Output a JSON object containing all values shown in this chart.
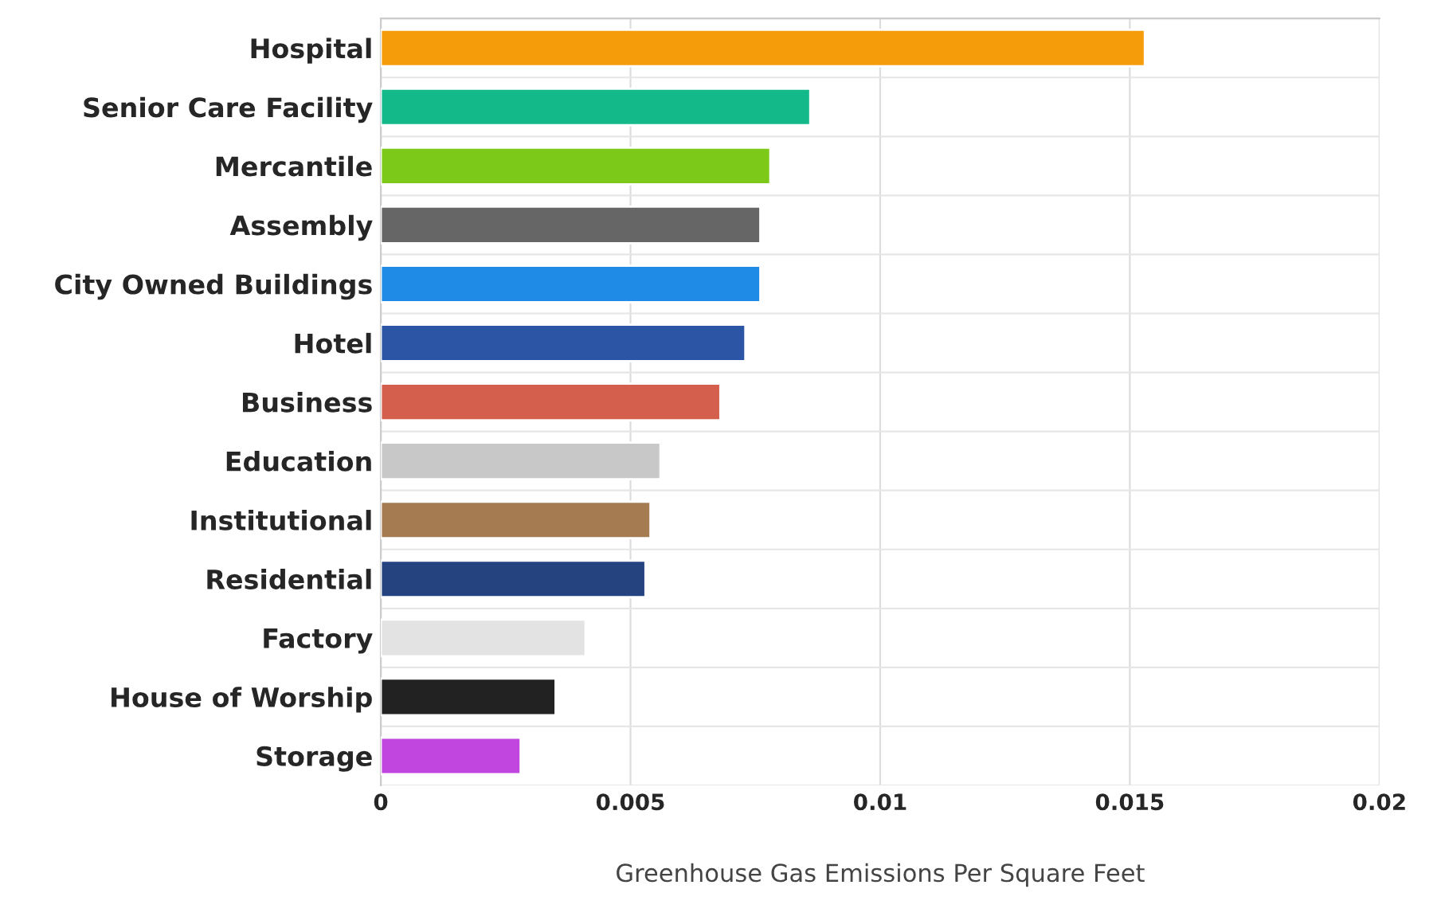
{
  "chart_data": {
    "type": "bar",
    "orientation": "horizontal",
    "xlabel": "Greenhouse Gas Emissions Per Square Feet",
    "categories": [
      "Hospital",
      "Senior Care Facility",
      "Mercantile",
      "Assembly",
      "City Owned Buildings",
      "Hotel",
      "Business",
      "Education",
      "Institutional",
      "Residential",
      "Factory",
      "House of Worship",
      "Storage"
    ],
    "values": [
      0.0153,
      0.0086,
      0.0078,
      0.0076,
      0.0076,
      0.0073,
      0.0068,
      0.0056,
      0.0054,
      0.0053,
      0.0041,
      0.0035,
      0.0028
    ],
    "colors": [
      "#f59c0a",
      "#14b98a",
      "#7cc91a",
      "#666666",
      "#1f8be6",
      "#2d55a6",
      "#d35f4c",
      "#c8c8c8",
      "#a57b52",
      "#24437f",
      "#e3e3e3",
      "#222222",
      "#c046df"
    ],
    "xlim": [
      0,
      0.02
    ],
    "xticks": [
      0,
      0.005,
      0.01,
      0.015,
      0.02
    ],
    "grid": true,
    "legend": false
  }
}
